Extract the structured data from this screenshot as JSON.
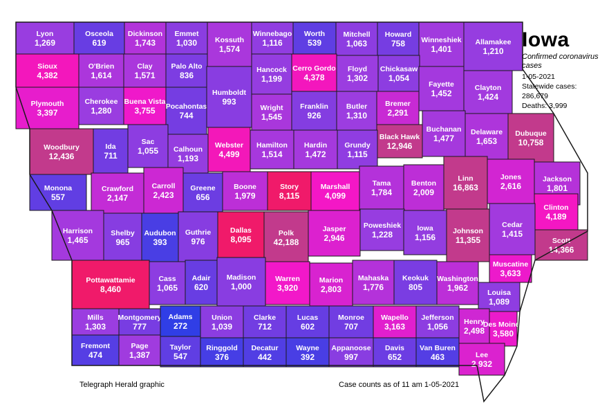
{
  "legend": {
    "title": "Iowa",
    "subtitle": "Confirmed coronavirus cases",
    "date": "1-05-2021",
    "statewide": "Statewide cases: 286,679",
    "deaths": "Deaths: 3,999"
  },
  "credit": "Telegraph Herald graphic",
  "as_of": "Case counts as of  11 am   1-05-2021",
  "colors": {
    "low": "#2a3ee6",
    "mid": "#9b3de0",
    "high": "#f417c9",
    "hot": "#f01a6a",
    "dark": "#c23a8c",
    "border": "#1a1a1a"
  },
  "counties": [
    {
      "name": "Lyon",
      "value": "1,269"
    },
    {
      "name": "Osceola",
      "value": "619"
    },
    {
      "name": "Dickinson",
      "value": "1,743"
    },
    {
      "name": "Emmet",
      "value": "1,030"
    },
    {
      "name": "Kossuth",
      "value": "1,574"
    },
    {
      "name": "Winnebago",
      "value": "1,116"
    },
    {
      "name": "Worth",
      "value": "539"
    },
    {
      "name": "Mitchell",
      "value": "1,063"
    },
    {
      "name": "Howard",
      "value": "758"
    },
    {
      "name": "Winneshiek",
      "value": "1,401"
    },
    {
      "name": "Allamakee",
      "value": "1,210"
    },
    {
      "name": "Sioux",
      "value": "4,382"
    },
    {
      "name": "O'Brien",
      "value": "1,614"
    },
    {
      "name": "Clay",
      "value": "1,571"
    },
    {
      "name": "Palo Alto",
      "value": "836"
    },
    {
      "name": "Hancock",
      "value": "1,199"
    },
    {
      "name": "Cerro Gordo",
      "value": "4,378"
    },
    {
      "name": "Floyd",
      "value": "1,302"
    },
    {
      "name": "Chickasaw",
      "value": "1,054"
    },
    {
      "name": "Fayette",
      "value": "1,452"
    },
    {
      "name": "Clayton",
      "value": "1,424"
    },
    {
      "name": "Plymouth",
      "value": "3,397"
    },
    {
      "name": "Cherokee",
      "value": "1,280"
    },
    {
      "name": "Buena Vista",
      "value": "3,755"
    },
    {
      "name": "Pocahontas",
      "value": "744"
    },
    {
      "name": "Humboldt",
      "value": "993"
    },
    {
      "name": "Wright",
      "value": "1,545"
    },
    {
      "name": "Franklin",
      "value": "926"
    },
    {
      "name": "Butler",
      "value": "1,310"
    },
    {
      "name": "Bremer",
      "value": "2,291"
    },
    {
      "name": "Black Hawk",
      "value": "12,946"
    },
    {
      "name": "Buchanan",
      "value": "1,477"
    },
    {
      "name": "Delaware",
      "value": "1,653"
    },
    {
      "name": "Dubuque",
      "value": "10,758"
    },
    {
      "name": "Woodbury",
      "value": "12,436"
    },
    {
      "name": "Ida",
      "value": "711"
    },
    {
      "name": "Sac",
      "value": "1,055"
    },
    {
      "name": "Calhoun",
      "value": "1,193"
    },
    {
      "name": "Webster",
      "value": "4,499"
    },
    {
      "name": "Hamilton",
      "value": "1,514"
    },
    {
      "name": "Hardin",
      "value": "1,472"
    },
    {
      "name": "Grundy",
      "value": "1,115"
    },
    {
      "name": "Monona",
      "value": "557"
    },
    {
      "name": "Crawford",
      "value": "2,147"
    },
    {
      "name": "Carroll",
      "value": "2,423"
    },
    {
      "name": "Greene",
      "value": "656"
    },
    {
      "name": "Boone",
      "value": "1,979"
    },
    {
      "name": "Story",
      "value": "8,115"
    },
    {
      "name": "Marshall",
      "value": "4,099"
    },
    {
      "name": "Tama",
      "value": "1,784"
    },
    {
      "name": "Benton",
      "value": "2,009"
    },
    {
      "name": "Linn",
      "value": "16,863"
    },
    {
      "name": "Jones",
      "value": "2,616"
    },
    {
      "name": "Jackson",
      "value": "1,801"
    },
    {
      "name": "Clinton",
      "value": "4,189"
    },
    {
      "name": "Harrison",
      "value": "1,465"
    },
    {
      "name": "Shelby",
      "value": "965"
    },
    {
      "name": "Audubon",
      "value": "393"
    },
    {
      "name": "Guthrie",
      "value": "976"
    },
    {
      "name": "Dallas",
      "value": "8,095"
    },
    {
      "name": "Polk",
      "value": "42,188"
    },
    {
      "name": "Jasper",
      "value": "2,946"
    },
    {
      "name": "Poweshiek",
      "value": "1,228"
    },
    {
      "name": "Iowa",
      "value": "1,156"
    },
    {
      "name": "Johnson",
      "value": "11,355"
    },
    {
      "name": "Cedar",
      "value": "1,415"
    },
    {
      "name": "Scott",
      "value": "14,366"
    },
    {
      "name": "Muscatine",
      "value": "3,633"
    },
    {
      "name": "Pottawattamie",
      "value": "8,460"
    },
    {
      "name": "Cass",
      "value": "1,065"
    },
    {
      "name": "Adair",
      "value": "620"
    },
    {
      "name": "Madison",
      "value": "1,000"
    },
    {
      "name": "Warren",
      "value": "3,920"
    },
    {
      "name": "Marion",
      "value": "2,803"
    },
    {
      "name": "Mahaska",
      "value": "1,776"
    },
    {
      "name": "Keokuk",
      "value": "805"
    },
    {
      "name": "Washington",
      "value": "1,962"
    },
    {
      "name": "Louisa",
      "value": "1,089"
    },
    {
      "name": "Mills",
      "value": "1,303"
    },
    {
      "name": "Montgomery",
      "value": "777"
    },
    {
      "name": "Adams",
      "value": "272"
    },
    {
      "name": "Union",
      "value": "1,039"
    },
    {
      "name": "Clarke",
      "value": "712"
    },
    {
      "name": "Lucas",
      "value": "602"
    },
    {
      "name": "Monroe",
      "value": "707"
    },
    {
      "name": "Wapello",
      "value": "3,163"
    },
    {
      "name": "Jefferson",
      "value": "1,056"
    },
    {
      "name": "Henry",
      "value": "2,498"
    },
    {
      "name": "Des Moines",
      "value": "3,580"
    },
    {
      "name": "Fremont",
      "value": "474"
    },
    {
      "name": "Page",
      "value": "1,387"
    },
    {
      "name": "Taylor",
      "value": "547"
    },
    {
      "name": "Ringgold",
      "value": "376"
    },
    {
      "name": "Decatur",
      "value": "442"
    },
    {
      "name": "Wayne",
      "value": "392"
    },
    {
      "name": "Appanoose",
      "value": "997"
    },
    {
      "name": "Davis",
      "value": "652"
    },
    {
      "name": "Van Buren",
      "value": "463"
    },
    {
      "name": "Lee",
      "value": "2,932"
    }
  ]
}
